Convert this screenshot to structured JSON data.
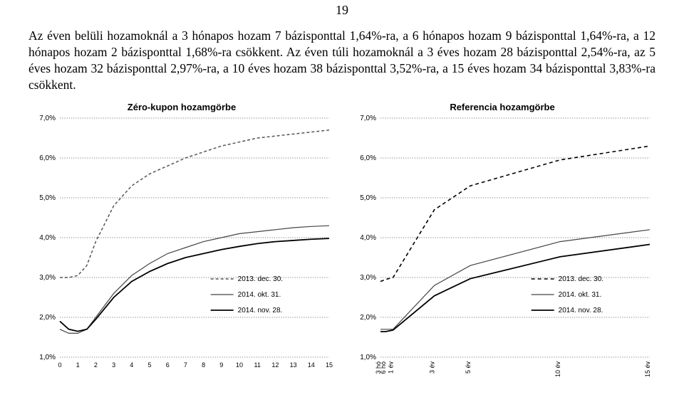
{
  "page_number": "19",
  "paragraph": "Az éven belüli hozamoknál a 3 hónapos hozam 7 bázisponttal 1,64%-ra, a 6 hónapos hozam 9 bázisponttal 1,64%-ra, a 12 hónapos hozam 2 bázisponttal 1,68%-ra csökkent. Az éven túli hozamoknál a 3 éves hozam 28 bázisponttal 2,54%-ra, az 5 éves hozam 32 bázisponttal 2,97%-ra, a 10 éves hozam 38 bázisponttal 3,52%-ra, a 15 éves hozam 34 bázisponttal 3,83%-ra csökkent.",
  "charts": {
    "left": {
      "title": "Zéro-kupon hozamgörbe",
      "type": "line",
      "y_ticks": [
        1.0,
        2.0,
        3.0,
        4.0,
        5.0,
        6.0,
        7.0
      ],
      "y_labels": [
        "1,0%",
        "2,0%",
        "3,0%",
        "4,0%",
        "5,0%",
        "6,0%",
        "7,0%"
      ],
      "ylim": [
        1.0,
        7.0
      ],
      "x_ticks": [
        0,
        1,
        2,
        3,
        4,
        5,
        6,
        7,
        8,
        9,
        10,
        11,
        12,
        13,
        14,
        15
      ],
      "xlim": [
        0,
        15
      ],
      "grid_color": "#000000",
      "background_color": "#ffffff",
      "series": [
        {
          "name": "2013. dec. 30.",
          "color": "#555555",
          "dash": "4 3",
          "width": 1.5,
          "x": [
            0,
            0.5,
            1,
            1.5,
            2,
            3,
            4,
            5,
            6,
            7,
            8,
            9,
            10,
            11,
            12,
            13,
            14,
            15
          ],
          "y": [
            3.0,
            3.0,
            3.05,
            3.3,
            3.9,
            4.8,
            5.3,
            5.6,
            5.8,
            6.0,
            6.15,
            6.3,
            6.4,
            6.5,
            6.55,
            6.6,
            6.65,
            6.7
          ]
        },
        {
          "name": "2014. okt. 31.",
          "color": "#444444",
          "dash": "",
          "width": 1.2,
          "x": [
            0,
            0.5,
            1,
            1.5,
            2,
            3,
            4,
            5,
            6,
            7,
            8,
            9,
            10,
            11,
            12,
            13,
            14,
            15
          ],
          "y": [
            1.7,
            1.6,
            1.6,
            1.7,
            2.0,
            2.6,
            3.05,
            3.35,
            3.6,
            3.75,
            3.9,
            4.0,
            4.1,
            4.15,
            4.2,
            4.25,
            4.28,
            4.3
          ]
        },
        {
          "name": "2014. nov. 28.",
          "color": "#000000",
          "dash": "",
          "width": 1.8,
          "x": [
            0,
            0.5,
            1,
            1.5,
            2,
            3,
            4,
            5,
            6,
            7,
            8,
            9,
            10,
            11,
            12,
            13,
            14,
            15
          ],
          "y": [
            1.9,
            1.7,
            1.65,
            1.7,
            1.95,
            2.5,
            2.9,
            3.15,
            3.35,
            3.5,
            3.6,
            3.7,
            3.78,
            3.85,
            3.9,
            3.93,
            3.96,
            3.98
          ]
        }
      ],
      "legend": [
        {
          "label": "2013. dec. 30.",
          "color": "#555555",
          "dash": "4 3",
          "width": 1.5
        },
        {
          "label": "2014. okt. 31.",
          "color": "#444444",
          "dash": "",
          "width": 1.2
        },
        {
          "label": "2014. nov. 28.",
          "color": "#000000",
          "dash": "",
          "width": 1.8
        }
      ]
    },
    "right": {
      "title": "Referencia hozamgörbe",
      "type": "line",
      "y_ticks": [
        1.0,
        2.0,
        3.0,
        4.0,
        5.0,
        6.0,
        7.0
      ],
      "y_labels": [
        "1,0%",
        "2,0%",
        "3,0%",
        "4,0%",
        "5,0%",
        "6,0%",
        "7,0%"
      ],
      "ylim": [
        1.0,
        7.0
      ],
      "x_categories": [
        "3 hó",
        "6 hó",
        "1 év",
        "3 év",
        "5 év",
        "10 év",
        "15 év"
      ],
      "x_positions": [
        0,
        0.28,
        0.7,
        3,
        5,
        10,
        15
      ],
      "xlim": [
        0,
        15
      ],
      "grid_color": "#000000",
      "background_color": "#ffffff",
      "series": [
        {
          "name": "2013. dec. 30.",
          "color": "#000000",
          "dash": "5 4",
          "width": 1.6,
          "x": [
            0,
            0.28,
            0.7,
            3,
            5,
            10,
            15
          ],
          "y": [
            2.9,
            2.95,
            3.0,
            4.7,
            5.3,
            5.95,
            6.3
          ]
        },
        {
          "name": "2014. okt. 31.",
          "color": "#444444",
          "dash": "",
          "width": 1.2,
          "x": [
            0,
            0.28,
            0.7,
            3,
            5,
            10,
            15
          ],
          "y": [
            1.7,
            1.7,
            1.7,
            2.8,
            3.3,
            3.9,
            4.2
          ]
        },
        {
          "name": "2014. nov. 28.",
          "color": "#000000",
          "dash": "",
          "width": 1.8,
          "x": [
            0,
            0.28,
            0.7,
            3,
            5,
            10,
            15
          ],
          "y": [
            1.64,
            1.64,
            1.68,
            2.54,
            2.97,
            3.52,
            3.83
          ]
        }
      ],
      "legend": [
        {
          "label": "2013. dec. 30.",
          "color": "#000000",
          "dash": "5 4",
          "width": 1.6
        },
        {
          "label": "2014. okt. 31.",
          "color": "#444444",
          "dash": "",
          "width": 1.2
        },
        {
          "label": "2014. nov. 28.",
          "color": "#000000",
          "dash": "",
          "width": 1.8
        }
      ]
    }
  }
}
